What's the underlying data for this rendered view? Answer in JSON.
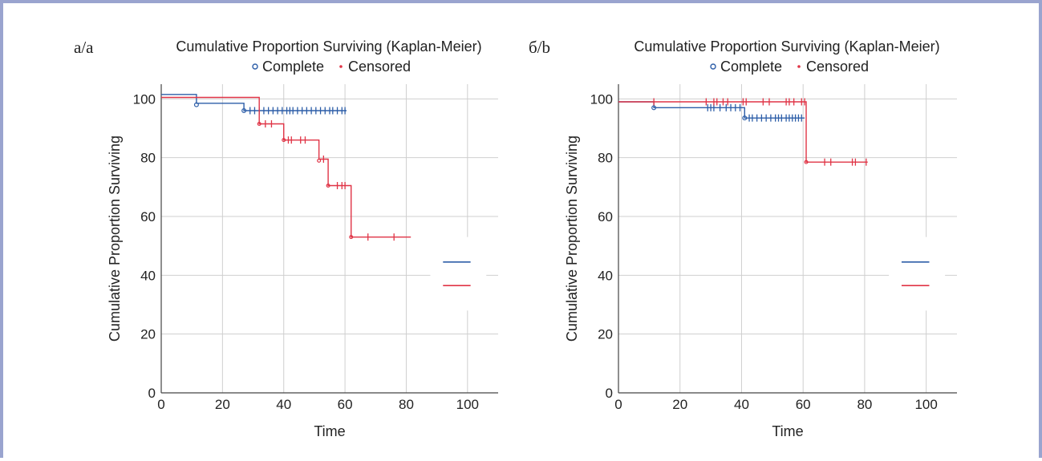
{
  "chart_data": [
    {
      "type": "line",
      "panel_label": "а/a",
      "title": "Cumulative Proportion Surviving (Kaplan-Meier)",
      "legend": [
        {
          "label": "Complete",
          "marker": "circle"
        },
        {
          "label": "Censored",
          "marker": "dot"
        }
      ],
      "xlabel": "Time",
      "ylabel": "Cumulative Proportion Surviving",
      "xlim": [
        0,
        110
      ],
      "ylim": [
        0,
        105
      ],
      "xticks": [
        0,
        20,
        40,
        60,
        80,
        100
      ],
      "yticks": [
        0,
        20,
        40,
        60,
        80,
        100
      ],
      "grid": true,
      "series": [
        {
          "color": "#2d5ea8",
          "steps": [
            [
              0,
              101.5
            ],
            [
              11.5,
              98.5
            ],
            [
              27,
              96
            ],
            [
              60.5,
              96
            ]
          ],
          "events": [
            [
              11.5,
              98
            ],
            [
              27,
              96
            ]
          ],
          "censored": [
            [
              29,
              96
            ],
            [
              30.5,
              96
            ],
            [
              32,
              96
            ],
            [
              33.5,
              96
            ],
            [
              35,
              96
            ],
            [
              36.5,
              96
            ],
            [
              38,
              96
            ],
            [
              39.5,
              96
            ],
            [
              41,
              96
            ],
            [
              42,
              96
            ],
            [
              43,
              96
            ],
            [
              44.5,
              96
            ],
            [
              46,
              96
            ],
            [
              47.5,
              96
            ],
            [
              49,
              96
            ],
            [
              50.5,
              96
            ],
            [
              52,
              96
            ],
            [
              53.5,
              96
            ],
            [
              55,
              96
            ],
            [
              56,
              96
            ],
            [
              57.5,
              96
            ],
            [
              59,
              96
            ],
            [
              60,
              96
            ]
          ]
        },
        {
          "color": "#e03446",
          "steps": [
            [
              0,
              100.5
            ],
            [
              32,
              91.5
            ],
            [
              40,
              86
            ],
            [
              51.5,
              79.5
            ],
            [
              54.5,
              70.5
            ],
            [
              62,
              53
            ],
            [
              81.5,
              53
            ]
          ],
          "events": [
            [
              32,
              91.5
            ],
            [
              40,
              86
            ],
            [
              51.5,
              79
            ],
            [
              54.5,
              70.5
            ],
            [
              62,
              53
            ]
          ],
          "censored": [
            [
              34,
              91.5
            ],
            [
              36,
              91.5
            ],
            [
              41.5,
              86
            ],
            [
              42.5,
              86
            ],
            [
              45.5,
              86
            ],
            [
              47,
              86
            ],
            [
              53,
              79.5
            ],
            [
              57.5,
              70.5
            ],
            [
              59,
              70.5
            ],
            [
              60,
              70.5
            ],
            [
              67.5,
              53
            ],
            [
              76,
              53
            ]
          ]
        }
      ]
    },
    {
      "type": "line",
      "panel_label": "б/b",
      "title": "Cumulative Proportion Surviving (Kaplan-Meier)",
      "legend": [
        {
          "label": "Complete",
          "marker": "circle"
        },
        {
          "label": "Censored",
          "marker": "dot"
        }
      ],
      "xlabel": "Time",
      "ylabel": "Cumulative Proportion Surviving",
      "xlim": [
        0,
        110
      ],
      "ylim": [
        0,
        105
      ],
      "xticks": [
        0,
        20,
        40,
        60,
        80,
        100
      ],
      "yticks": [
        0,
        20,
        40,
        60,
        80,
        100
      ],
      "grid": true,
      "series": [
        {
          "color": "#2d5ea8",
          "steps": [
            [
              0,
              99
            ],
            [
              11.5,
              97
            ],
            [
              41,
              93.5
            ],
            [
              60.5,
              93.5
            ]
          ],
          "events": [
            [
              11.5,
              97
            ],
            [
              41,
              93.5
            ]
          ],
          "censored": [
            [
              29,
              97
            ],
            [
              30,
              97
            ],
            [
              31,
              97
            ],
            [
              33,
              97
            ],
            [
              35,
              97
            ],
            [
              36.5,
              97
            ],
            [
              38,
              97
            ],
            [
              39.5,
              97
            ],
            [
              42.5,
              93.5
            ],
            [
              43.5,
              93.5
            ],
            [
              45,
              93.5
            ],
            [
              46.5,
              93.5
            ],
            [
              48,
              93.5
            ],
            [
              49.5,
              93.5
            ],
            [
              51,
              93.5
            ],
            [
              52,
              93.5
            ],
            [
              53,
              93.5
            ],
            [
              54.5,
              93.5
            ],
            [
              55.5,
              93.5
            ],
            [
              56.5,
              93.5
            ],
            [
              57.5,
              93.5
            ],
            [
              58.5,
              93.5
            ],
            [
              59.5,
              93.5
            ]
          ]
        },
        {
          "color": "#e03446",
          "steps": [
            [
              0,
              99
            ],
            [
              61,
              78.5
            ],
            [
              81,
              78.5
            ]
          ],
          "events": [
            [
              61,
              78.5
            ]
          ],
          "censored": [
            [
              11.5,
              99
            ],
            [
              28.5,
              99
            ],
            [
              31,
              99
            ],
            [
              32,
              99
            ],
            [
              34,
              99
            ],
            [
              35.5,
              99
            ],
            [
              40.5,
              99
            ],
            [
              41.5,
              99
            ],
            [
              47,
              99
            ],
            [
              49,
              99
            ],
            [
              54.5,
              99
            ],
            [
              55.5,
              99
            ],
            [
              57,
              99
            ],
            [
              59.5,
              99
            ],
            [
              60.5,
              99
            ],
            [
              67,
              78.5
            ],
            [
              69,
              78.5
            ],
            [
              76,
              78.5
            ],
            [
              77,
              78.5
            ],
            [
              80.5,
              78.5
            ]
          ]
        }
      ]
    }
  ]
}
